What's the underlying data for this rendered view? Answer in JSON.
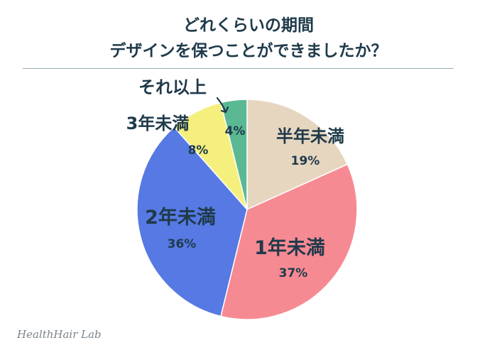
{
  "chart_data": {
    "type": "pie",
    "title_line1": "どれくらいの期間",
    "title_line2": "デザインを保つことができましたか？",
    "slices": [
      {
        "label": "半年未満",
        "value": 19,
        "value_label": "19%",
        "color": "#e6d6c0"
      },
      {
        "label": "1年未満",
        "value": 37,
        "value_label": "37%",
        "color": "#f68a93"
      },
      {
        "label": "2年未満",
        "value": 36,
        "value_label": "36%",
        "color": "#5679e3"
      },
      {
        "label": "3年未満",
        "value": 8,
        "value_label": "8%",
        "color": "#f5ef7e"
      },
      {
        "label": "それ以上",
        "value": 4,
        "value_label": "4%",
        "color": "#5ab893"
      }
    ],
    "text_color": "#1f3a4a"
  },
  "watermark": "HealthHair Lab"
}
